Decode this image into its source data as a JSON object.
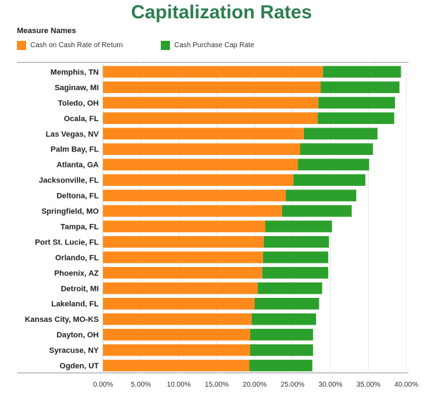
{
  "header": {
    "title": "Capitalization Rates"
  },
  "legend": {
    "title": "Measure Names",
    "items": [
      {
        "label": "Cash on Cash Rate of Return",
        "color": "#ff8a1c"
      },
      {
        "label": "Cash Purchase Cap Rate",
        "color": "#2ca02c"
      }
    ]
  },
  "chart_data": {
    "type": "bar",
    "orientation": "horizontal",
    "stacked": true,
    "title": "Capitalization Rates",
    "legend_title": "Measure Names",
    "categories": [
      "Memphis, TN",
      "Saginaw, MI",
      "Toledo, OH",
      "Ocala, FL",
      "Las Vegas, NV",
      "Palm Bay, FL",
      "Atlanta, GA",
      "Jacksonville, FL",
      "Deltona, FL",
      "Springfield, MO",
      "Tampa, FL",
      "Port St. Lucie, FL",
      "Orlando, FL",
      "Phoenix, AZ",
      "Detroit, MI",
      "Lakeland, FL",
      "Kansas City, MO-KS",
      "Dayton, OH",
      "Syracuse, NY",
      "Ogden, UT"
    ],
    "series": [
      {
        "name": "Cash on Cash Rate of Return",
        "color": "#ff8a1c",
        "values": [
          29.0,
          28.7,
          28.4,
          28.3,
          26.5,
          26.0,
          25.7,
          25.1,
          24.1,
          23.6,
          21.4,
          21.2,
          21.1,
          21.0,
          20.4,
          20.0,
          19.6,
          19.4,
          19.4,
          19.3
        ]
      },
      {
        "name": "Cash Purchase Cap Rate",
        "color": "#2ca02c",
        "values": [
          10.3,
          10.4,
          10.1,
          10.1,
          9.7,
          9.6,
          9.4,
          9.5,
          9.3,
          9.2,
          8.8,
          8.6,
          8.6,
          8.7,
          8.5,
          8.5,
          8.5,
          8.3,
          8.3,
          8.3
        ]
      }
    ],
    "xlim": [
      0,
      40
    ],
    "x_ticks": [
      "0.00%",
      "5.00%",
      "10.00%",
      "15.00%",
      "20.00%",
      "25.00%",
      "30.00%",
      "35.00%",
      "40.00%"
    ],
    "grid": true,
    "legend_position": "top-left"
  }
}
